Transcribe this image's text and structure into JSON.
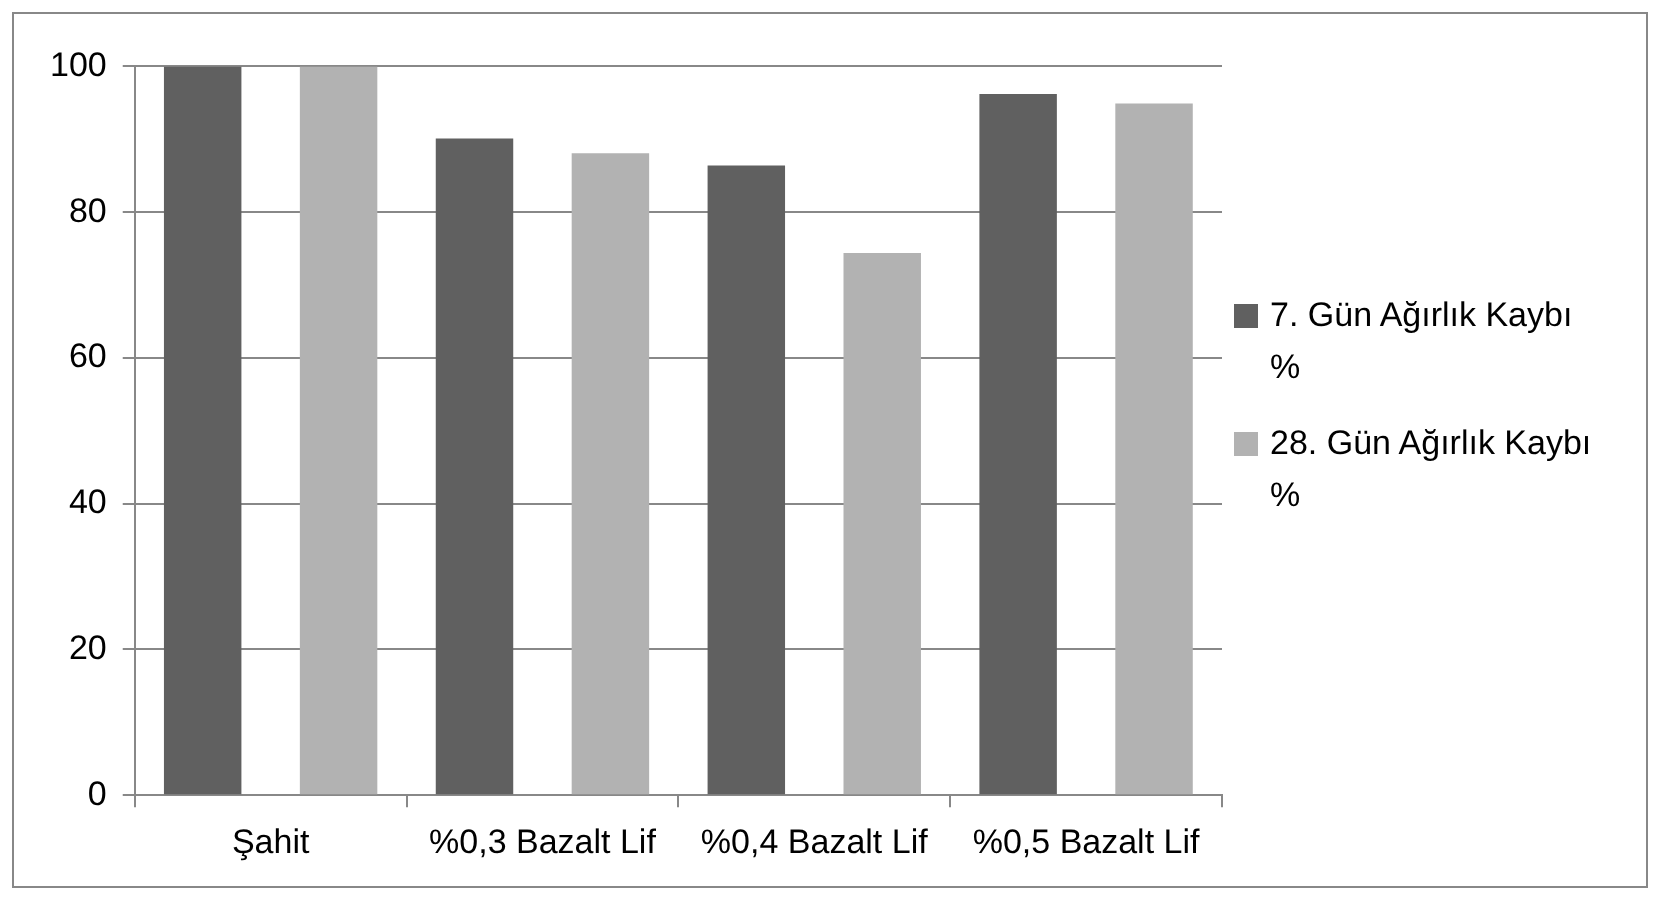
{
  "chart_data": {
    "type": "bar",
    "categories": [
      "Şahit",
      "%0,3 Bazalt Lif",
      "%0,4 Bazalt Lif",
      "%0,5 Bazalt Lif"
    ],
    "series": [
      {
        "name": "7. Gün Ağırlık Kaybı %",
        "color": "#606060",
        "values": [
          100,
          90.1,
          86.4,
          96.2
        ]
      },
      {
        "name": "28. Gün Ağırlık Kaybı %",
        "color": "#b2b2b2",
        "values": [
          100,
          88.1,
          74.4,
          94.9
        ]
      }
    ],
    "ylim": [
      0,
      100
    ],
    "yticks": [
      0,
      20,
      40,
      60,
      80,
      100
    ],
    "grid": "y",
    "legend": "right"
  }
}
